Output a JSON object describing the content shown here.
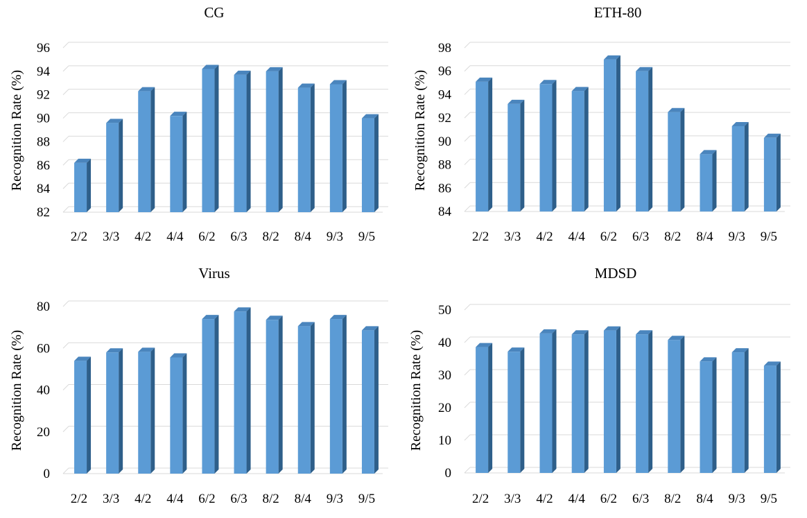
{
  "colors": {
    "bar_front": "#5b9bd5",
    "bar_side": "#2e5f8a",
    "bar_top": "#4a85bd",
    "grid": "#d9d9d9",
    "axis": "#bfbfbf"
  },
  "chart_data": [
    {
      "type": "bar",
      "title": "CG",
      "xlabel": "",
      "ylabel": "Recognition Rate (%)",
      "categories": [
        "2/2",
        "3/3",
        "4/2",
        "4/4",
        "6/2",
        "6/3",
        "8/2",
        "8/4",
        "9/3",
        "9/5"
      ],
      "values": [
        86.2,
        89.6,
        92.3,
        90.2,
        94.2,
        93.7,
        94.0,
        92.6,
        92.9,
        90.0
      ],
      "ylim": [
        82,
        96
      ],
      "yticks": [
        "82",
        "84",
        "86",
        "88",
        "90",
        "92",
        "94",
        "96"
      ],
      "grid": true
    },
    {
      "type": "bar",
      "title": "ETH-80",
      "xlabel": "",
      "ylabel": "Recognition Rate (%)",
      "categories": [
        "2/2",
        "3/3",
        "4/2",
        "4/4",
        "6/2",
        "6/3",
        "8/2",
        "8/4",
        "9/3",
        "9/5"
      ],
      "values": [
        95.1,
        93.2,
        94.9,
        94.3,
        97.0,
        96.0,
        92.5,
        88.9,
        91.3,
        90.3
      ],
      "ylim": [
        84,
        98
      ],
      "yticks": [
        "84",
        "86",
        "88",
        "90",
        "92",
        "94",
        "96",
        "98"
      ],
      "grid": true
    },
    {
      "type": "bar",
      "title": "Virus",
      "xlabel": "",
      "ylabel": "Recognition Rate (%)",
      "categories": [
        "2/2",
        "3/3",
        "4/2",
        "4/4",
        "6/2",
        "6/3",
        "8/2",
        "8/4",
        "9/3",
        "9/5"
      ],
      "values": [
        54.0,
        58.0,
        58.3,
        55.6,
        74.0,
        77.6,
        73.6,
        70.6,
        74.0,
        68.6
      ],
      "ylim": [
        0,
        80
      ],
      "yticks": [
        "0",
        "20",
        "40",
        "60",
        "80"
      ],
      "grid": true
    },
    {
      "type": "bar",
      "title": "MDSD",
      "xlabel": "",
      "ylabel": "Recognition Rate (%)",
      "categories": [
        "2/2",
        "3/3",
        "4/2",
        "4/4",
        "6/2",
        "6/3",
        "8/2",
        "8/4",
        "9/3",
        "9/5"
      ],
      "values": [
        38.6,
        37.2,
        42.8,
        42.5,
        43.7,
        42.5,
        40.8,
        34.2,
        37.0,
        32.9
      ],
      "ylim": [
        0,
        50
      ],
      "yticks": [
        "0",
        "10",
        "20",
        "30",
        "40",
        "50"
      ],
      "grid": true
    }
  ]
}
